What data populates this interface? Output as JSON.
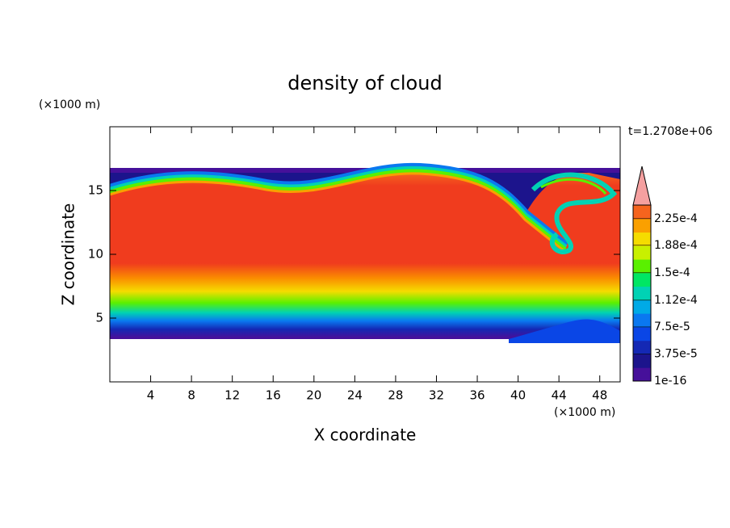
{
  "chart_data": {
    "type": "contour",
    "title": "density of cloud",
    "x_label": "X coordinate",
    "y_label": "Z coordinate",
    "x_unit": "(×1000 m)",
    "y_unit": "(×1000 m)",
    "time_label": "t=1.2708e+06",
    "xlim": [
      0,
      50
    ],
    "ylim": [
      0,
      20
    ],
    "xticks": [
      4,
      8,
      12,
      16,
      20,
      24,
      28,
      32,
      36,
      40,
      44,
      48
    ],
    "yticks": [
      5,
      10,
      15
    ],
    "colorbar": {
      "clim": [
        1e-16,
        0.00024375
      ],
      "ticks": [
        {
          "value": 1e-16,
          "label": "1e-16"
        },
        {
          "value": 3.75e-05,
          "label": "3.75e-5"
        },
        {
          "value": 7.5e-05,
          "label": "7.5e-5"
        },
        {
          "value": 0.000112,
          "label": "1.12e-4"
        },
        {
          "value": 0.00015,
          "label": "1.5e-4"
        },
        {
          "value": 0.000188,
          "label": "1.88e-4"
        },
        {
          "value": 0.000225,
          "label": "2.25e-4"
        }
      ],
      "colors": [
        "#46109a",
        "#1c148c",
        "#1428b4",
        "#0a46e6",
        "#0a78f0",
        "#00aae6",
        "#00d2b4",
        "#00e664",
        "#5af000",
        "#c8f000",
        "#f5dc00",
        "#faa000",
        "#f5641e"
      ],
      "extend_color": "#f5a0a0"
    }
  }
}
